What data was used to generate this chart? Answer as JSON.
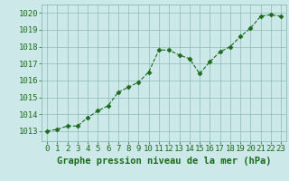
{
  "x": [
    0,
    1,
    2,
    3,
    4,
    5,
    6,
    7,
    8,
    9,
    10,
    11,
    12,
    13,
    14,
    15,
    16,
    17,
    18,
    19,
    20,
    21,
    22,
    23
  ],
  "y": [
    1013.0,
    1013.1,
    1013.3,
    1013.3,
    1013.8,
    1014.2,
    1014.5,
    1015.3,
    1015.6,
    1015.9,
    1016.5,
    1017.8,
    1017.8,
    1017.5,
    1017.3,
    1016.4,
    1017.1,
    1017.7,
    1018.0,
    1018.6,
    1019.1,
    1019.8,
    1019.9,
    1019.8
  ],
  "line_color": "#1a6b1a",
  "marker_color": "#1a6b1a",
  "bg_color": "#cce8e8",
  "grid_color": "#88bbbb",
  "xlabel": "Graphe pression niveau de la mer (hPa)",
  "xlabel_color": "#1a6b1a",
  "tick_color": "#1a6b1a",
  "ylim": [
    1012.4,
    1020.5
  ],
  "xlim": [
    -0.5,
    23.5
  ],
  "yticks": [
    1013,
    1014,
    1015,
    1016,
    1017,
    1018,
    1019,
    1020
  ],
  "xticks": [
    0,
    1,
    2,
    3,
    4,
    5,
    6,
    7,
    8,
    9,
    10,
    11,
    12,
    13,
    14,
    15,
    16,
    17,
    18,
    19,
    20,
    21,
    22,
    23
  ],
  "tick_fontsize": 6.5,
  "xlabel_fontsize": 7.5
}
